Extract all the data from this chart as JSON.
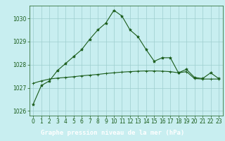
{
  "title": "Graphe pression niveau de la mer (hPa)",
  "background_color": "#c8eef0",
  "label_bg_color": "#2d6e2d",
  "label_text_color": "#ffffff",
  "grid_color": "#9ecece",
  "line_color": "#1a5c1a",
  "marker_color": "#1a5c1a",
  "ylim": [
    1025.8,
    1030.55
  ],
  "xlim": [
    -0.5,
    23.5
  ],
  "yticks": [
    1026,
    1027,
    1028,
    1029,
    1030
  ],
  "xticks": [
    0,
    1,
    2,
    3,
    4,
    5,
    6,
    7,
    8,
    9,
    10,
    11,
    12,
    13,
    14,
    15,
    16,
    17,
    18,
    19,
    20,
    21,
    22,
    23
  ],
  "series1": [
    1026.3,
    1027.1,
    1027.3,
    1027.75,
    1028.05,
    1028.35,
    1028.65,
    1029.1,
    1029.5,
    1029.8,
    1030.35,
    1030.1,
    1029.5,
    1029.2,
    1028.65,
    1028.15,
    1028.3,
    1028.3,
    1027.65,
    1027.8,
    1027.45,
    1027.4,
    1027.65,
    1027.4
  ],
  "series2": [
    1027.2,
    1027.3,
    1027.38,
    1027.42,
    1027.45,
    1027.48,
    1027.52,
    1027.55,
    1027.58,
    1027.62,
    1027.65,
    1027.68,
    1027.7,
    1027.72,
    1027.73,
    1027.73,
    1027.72,
    1027.7,
    1027.65,
    1027.7,
    1027.4,
    1027.38,
    1027.38,
    1027.38
  ],
  "tick_fontsize": 5.5,
  "title_fontsize": 6.5
}
